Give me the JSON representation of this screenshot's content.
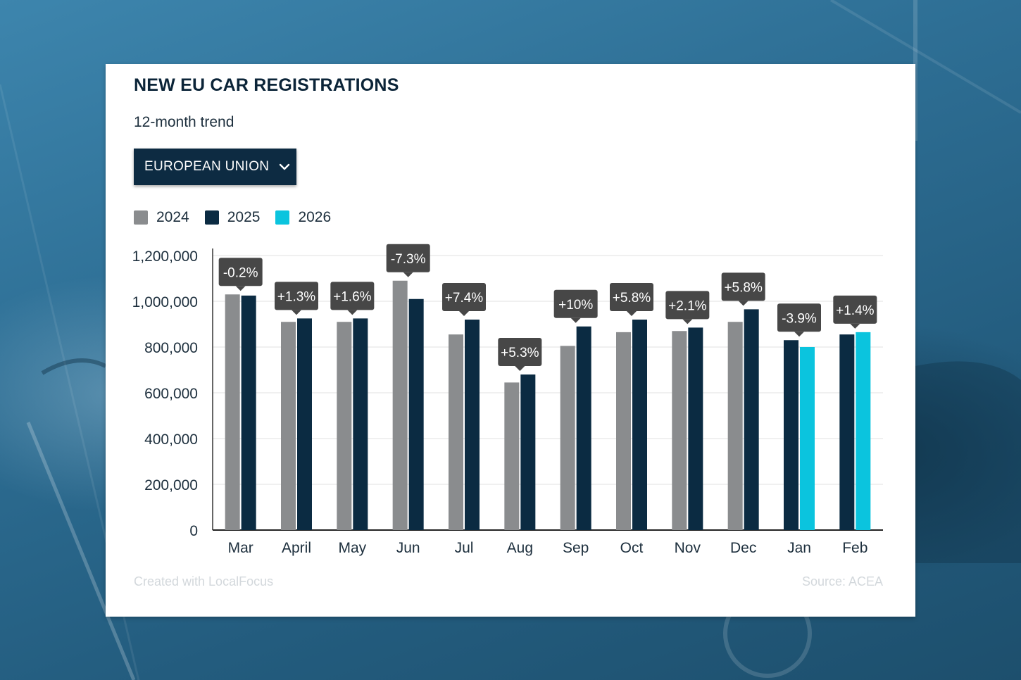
{
  "header": {
    "title": "NEW EU CAR REGISTRATIONS",
    "subtitle": "12-month trend"
  },
  "region_select": {
    "selected": "EUROPEAN UNION"
  },
  "footer": {
    "credit": "Created with LocalFocus",
    "source": "Source:  ACEA"
  },
  "colors": {
    "2024": "#8a8c8e",
    "2025": "#0b2b42",
    "2026": "#0bc4de",
    "tooltip": "#474747"
  },
  "chart_data": {
    "type": "bar",
    "categories": [
      "Mar",
      "April",
      "May",
      "Jun",
      "Jul",
      "Aug",
      "Sep",
      "Oct",
      "Nov",
      "Dec",
      "Jan",
      "Feb"
    ],
    "series": [
      {
        "name": "2024",
        "values": [
          1030000,
          910000,
          910000,
          1090000,
          855000,
          645000,
          805000,
          865000,
          870000,
          910000,
          null,
          null
        ]
      },
      {
        "name": "2025",
        "values": [
          1025000,
          925000,
          925000,
          1010000,
          920000,
          680000,
          890000,
          920000,
          885000,
          965000,
          830000,
          855000
        ]
      },
      {
        "name": "2026",
        "values": [
          null,
          null,
          null,
          null,
          null,
          null,
          null,
          null,
          null,
          null,
          800000,
          865000
        ]
      }
    ],
    "change_labels": [
      "-0.2%",
      "+1.3%",
      "+1.6%",
      "-7.3%",
      "+7.4%",
      "+5.3%",
      "+10%",
      "+5.8%",
      "+2.1%",
      "+5.8%",
      "-3.9%",
      "+1.4%"
    ],
    "yticks": [
      "1,200,000",
      "1,000,000",
      "800,000",
      "600,000",
      "400,000",
      "200,000",
      "0"
    ],
    "ylim": [
      0,
      1200000
    ],
    "grid": true,
    "legend_position": "top-left"
  }
}
